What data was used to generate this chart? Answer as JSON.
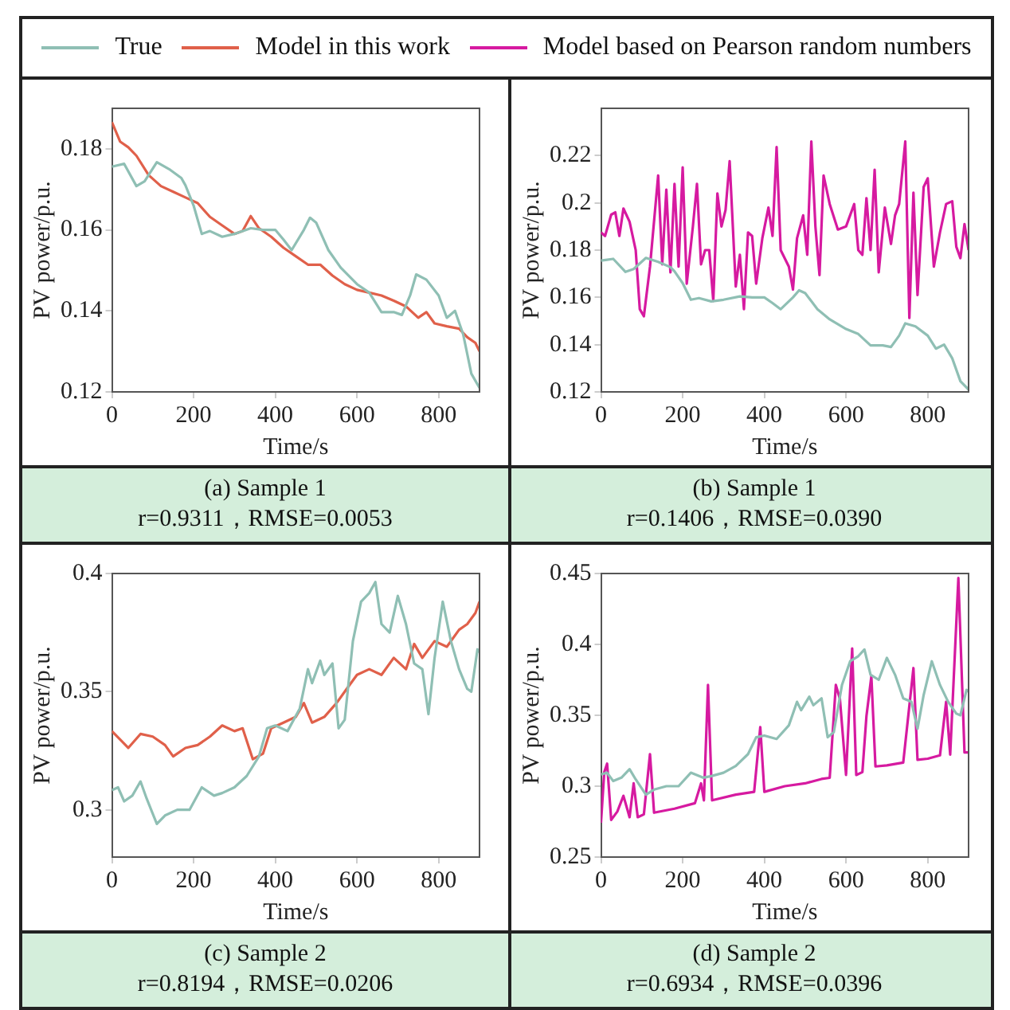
{
  "chart_data": [
    {
      "type": "line",
      "title": "(a) Sample 1",
      "subtitle": "r=0.9311，RMSE=0.0053",
      "xlabel": "Time/s",
      "ylabel": "PV power/p.u.",
      "xlim": [
        0,
        900
      ],
      "xticks": [
        0,
        200,
        400,
        600,
        800
      ],
      "ylim": [
        0.12,
        0.19
      ],
      "yticks": [
        0.12,
        0.14,
        0.16,
        0.18
      ],
      "legend": "top",
      "marker": "none",
      "line_style": "solid",
      "series": [
        {
          "name": "True",
          "color": "#8fbfb4",
          "x": [
            0,
            30,
            60,
            80,
            110,
            140,
            170,
            180,
            200,
            220,
            240,
            270,
            300,
            340,
            370,
            400,
            420,
            440,
            470,
            485,
            500,
            530,
            560,
            600,
            630,
            660,
            690,
            710,
            730,
            745,
            770,
            800,
            820,
            840,
            860,
            880,
            900
          ],
          "values": [
            0.1756,
            0.1763,
            0.1708,
            0.172,
            0.1767,
            0.175,
            0.1728,
            0.171,
            0.166,
            0.159,
            0.1597,
            0.1583,
            0.159,
            0.1604,
            0.16,
            0.16,
            0.1576,
            0.155,
            0.16,
            0.163,
            0.1618,
            0.155,
            0.1507,
            0.1466,
            0.1445,
            0.1397,
            0.1397,
            0.139,
            0.1438,
            0.149,
            0.1477,
            0.1438,
            0.1383,
            0.14,
            0.1342,
            0.1245,
            0.121
          ]
        },
        {
          "name": "Model in this work",
          "color": "#e0604a",
          "x": [
            0,
            20,
            40,
            60,
            90,
            120,
            150,
            180,
            210,
            240,
            270,
            300,
            320,
            340,
            360,
            390,
            420,
            450,
            480,
            510,
            540,
            570,
            600,
            630,
            660,
            690,
            720,
            750,
            770,
            790,
            820,
            850,
            870,
            890,
            900
          ],
          "values": [
            0.1866,
            0.1818,
            0.1804,
            0.1783,
            0.1735,
            0.1708,
            0.1694,
            0.168,
            0.1666,
            0.1632,
            0.1611,
            0.159,
            0.1597,
            0.1634,
            0.1604,
            0.1583,
            0.1556,
            0.1535,
            0.1514,
            0.1514,
            0.1487,
            0.1466,
            0.1452,
            0.1445,
            0.1438,
            0.1425,
            0.1411,
            0.1383,
            0.1397,
            0.1369,
            0.1362,
            0.1356,
            0.1335,
            0.1321,
            0.13
          ]
        }
      ]
    },
    {
      "type": "line",
      "title": "(b) Sample 1",
      "subtitle": "r=0.1406，RMSE=0.0390",
      "xlabel": "Time/s",
      "ylabel": "PV power/p.u.",
      "xlim": [
        0,
        900
      ],
      "xticks": [
        0,
        200,
        400,
        600,
        800
      ],
      "ylim": [
        0.12,
        0.24
      ],
      "yticks": [
        0.12,
        0.14,
        0.16,
        0.18,
        0.2,
        0.22
      ],
      "legend": "top",
      "marker": "none",
      "line_style": "solid",
      "series": [
        {
          "name": "True",
          "color": "#8fbfb4",
          "x": [
            0,
            30,
            60,
            80,
            110,
            140,
            170,
            180,
            200,
            220,
            240,
            270,
            300,
            340,
            370,
            400,
            420,
            440,
            470,
            485,
            500,
            530,
            560,
            600,
            630,
            660,
            690,
            710,
            730,
            745,
            770,
            800,
            820,
            840,
            860,
            880,
            900
          ],
          "values": [
            0.1756,
            0.1763,
            0.1708,
            0.172,
            0.1767,
            0.175,
            0.1728,
            0.171,
            0.166,
            0.159,
            0.1597,
            0.1583,
            0.159,
            0.1604,
            0.16,
            0.16,
            0.1576,
            0.155,
            0.16,
            0.163,
            0.1618,
            0.155,
            0.1507,
            0.1466,
            0.1445,
            0.1397,
            0.1397,
            0.139,
            0.1438,
            0.149,
            0.1477,
            0.1438,
            0.1383,
            0.14,
            0.1342,
            0.1245,
            0.121
          ]
        },
        {
          "name": "Model based on Pearson random numbers",
          "color": "#d61aa0",
          "x": [
            0,
            10,
            25,
            35,
            45,
            55,
            70,
            85,
            95,
            105,
            120,
            140,
            150,
            160,
            170,
            180,
            190,
            200,
            210,
            225,
            235,
            245,
            255,
            265,
            275,
            285,
            295,
            305,
            315,
            330,
            340,
            350,
            360,
            370,
            380,
            395,
            410,
            420,
            430,
            440,
            460,
            470,
            480,
            495,
            505,
            515,
            525,
            535,
            545,
            560,
            580,
            600,
            620,
            630,
            640,
            650,
            660,
            670,
            680,
            695,
            710,
            720,
            730,
            745,
            755,
            765,
            775,
            790,
            800,
            815,
            830,
            845,
            860,
            870,
            880,
            890,
            900
          ],
          "values": [
            0.1875,
            0.186,
            0.195,
            0.196,
            0.186,
            0.1976,
            0.192,
            0.18,
            0.155,
            0.152,
            0.173,
            0.2116,
            0.174,
            0.2056,
            0.1706,
            0.208,
            0.173,
            0.215,
            0.1658,
            0.19,
            0.208,
            0.174,
            0.18,
            0.18,
            0.1585,
            0.204,
            0.19,
            0.197,
            0.2176,
            0.1646,
            0.178,
            0.155,
            0.1875,
            0.186,
            0.1658,
            0.185,
            0.198,
            0.186,
            0.2236,
            0.18,
            0.173,
            0.1633,
            0.185,
            0.1947,
            0.178,
            0.226,
            0.19,
            0.1694,
            0.2116,
            0.1995,
            0.1887,
            0.19,
            0.1995,
            0.18,
            0.178,
            0.202,
            0.18,
            0.214,
            0.1706,
            0.198,
            0.1826,
            0.1947,
            0.1995,
            0.226,
            0.1513,
            0.2043,
            0.161,
            0.2067,
            0.2104,
            0.173,
            0.1875,
            0.1995,
            0.2007,
            0.1814,
            0.1766,
            0.191,
            0.18
          ]
        }
      ]
    },
    {
      "type": "line",
      "title": "(c) Sample 2",
      "subtitle": "r=0.8194，RMSE=0.0206",
      "xlabel": "Time/s",
      "ylabel": "PV power/p.u.",
      "xlim": [
        0,
        900
      ],
      "xticks": [
        0,
        200,
        400,
        600,
        800
      ],
      "ylim": [
        0.28,
        0.4
      ],
      "yticks": [
        0.3,
        0.35,
        0.4
      ],
      "legend": "top",
      "marker": "none",
      "line_style": "solid",
      "series": [
        {
          "name": "True",
          "color": "#8fbfb4",
          "x": [
            0,
            15,
            30,
            50,
            70,
            85,
            110,
            130,
            160,
            190,
            220,
            250,
            270,
            300,
            330,
            360,
            380,
            400,
            430,
            460,
            480,
            490,
            510,
            520,
            540,
            555,
            570,
            590,
            610,
            630,
            645,
            660,
            680,
            700,
            720,
            740,
            760,
            775,
            790,
            810,
            830,
            850,
            870,
            880,
            895,
            900
          ],
          "values": [
            0.3083,
            0.3095,
            0.3036,
            0.306,
            0.312,
            0.3048,
            0.294,
            0.2976,
            0.3,
            0.3,
            0.3095,
            0.306,
            0.3071,
            0.3095,
            0.3143,
            0.3226,
            0.3345,
            0.3357,
            0.3333,
            0.3429,
            0.3595,
            0.3536,
            0.3631,
            0.3571,
            0.3619,
            0.3345,
            0.3381,
            0.3714,
            0.3881,
            0.3917,
            0.3964,
            0.3786,
            0.375,
            0.3905,
            0.3786,
            0.3619,
            0.3595,
            0.3405,
            0.3643,
            0.3881,
            0.3714,
            0.3595,
            0.3512,
            0.35,
            0.3679,
            0.3667
          ]
        },
        {
          "name": "Model in this work",
          "color": "#e0604a",
          "x": [
            0,
            20,
            40,
            70,
            100,
            130,
            150,
            180,
            210,
            240,
            270,
            300,
            320,
            345,
            370,
            390,
            420,
            450,
            470,
            490,
            520,
            550,
            575,
            600,
            630,
            660,
            690,
            720,
            740,
            760,
            790,
            820,
            850,
            870,
            890,
            900
          ],
          "values": [
            0.3333,
            0.3298,
            0.3262,
            0.3321,
            0.331,
            0.3274,
            0.3226,
            0.3262,
            0.3274,
            0.331,
            0.3357,
            0.3333,
            0.3345,
            0.3214,
            0.3238,
            0.3345,
            0.3369,
            0.3393,
            0.3452,
            0.3369,
            0.3393,
            0.3452,
            0.3512,
            0.3571,
            0.3595,
            0.3571,
            0.3643,
            0.3595,
            0.3702,
            0.3643,
            0.3714,
            0.369,
            0.3762,
            0.3786,
            0.3833,
            0.3881
          ]
        }
      ]
    },
    {
      "type": "line",
      "title": "(d) Sample 2",
      "subtitle": "r=0.6934，RMSE=0.0396",
      "xlabel": "Time/s",
      "ylabel": "PV power/p.u.",
      "xlim": [
        0,
        900
      ],
      "xticks": [
        0,
        200,
        400,
        600,
        800
      ],
      "ylim": [
        0.25,
        0.45
      ],
      "yticks": [
        0.25,
        0.3,
        0.35,
        0.4,
        0.45
      ],
      "legend": "top",
      "marker": "none",
      "line_style": "solid",
      "series": [
        {
          "name": "True",
          "color": "#8fbfb4",
          "x": [
            0,
            15,
            30,
            50,
            70,
            85,
            110,
            130,
            160,
            190,
            220,
            250,
            270,
            300,
            330,
            360,
            380,
            400,
            430,
            460,
            480,
            490,
            510,
            520,
            540,
            555,
            570,
            590,
            610,
            630,
            645,
            660,
            680,
            700,
            720,
            740,
            760,
            775,
            790,
            810,
            830,
            850,
            870,
            880,
            895,
            900
          ],
          "values": [
            0.3083,
            0.3095,
            0.3036,
            0.306,
            0.312,
            0.3048,
            0.294,
            0.2976,
            0.3,
            0.3,
            0.3095,
            0.306,
            0.3071,
            0.3095,
            0.3143,
            0.3226,
            0.3345,
            0.3357,
            0.3333,
            0.3429,
            0.3595,
            0.3536,
            0.3631,
            0.3571,
            0.3619,
            0.3345,
            0.3381,
            0.3714,
            0.3881,
            0.3917,
            0.3964,
            0.3786,
            0.375,
            0.3905,
            0.3786,
            0.3619,
            0.3595,
            0.3405,
            0.3643,
            0.3881,
            0.3714,
            0.3595,
            0.3512,
            0.35,
            0.3679,
            0.3667
          ]
        },
        {
          "name": "Model based on Pearson random numbers",
          "color": "#d61aa0",
          "x": [
            0,
            8,
            15,
            25,
            40,
            55,
            70,
            80,
            90,
            105,
            120,
            130,
            180,
            230,
            245,
            252,
            262,
            272,
            330,
            375,
            390,
            400,
            450,
            500,
            540,
            560,
            575,
            585,
            600,
            615,
            625,
            640,
            650,
            662,
            672,
            700,
            740,
            765,
            775,
            800,
            830,
            845,
            855,
            875,
            890,
            900
          ],
          "values": [
            0.2742,
            0.3099,
            0.3159,
            0.2762,
            0.2821,
            0.2932,
            0.2781,
            0.302,
            0.2781,
            0.2801,
            0.3226,
            0.2813,
            0.2841,
            0.288,
            0.302,
            0.29,
            0.3714,
            0.29,
            0.294,
            0.296,
            0.3416,
            0.296,
            0.3,
            0.302,
            0.3051,
            0.3059,
            0.3714,
            0.3615,
            0.3079,
            0.3972,
            0.3079,
            0.3099,
            0.3496,
            0.3774,
            0.3139,
            0.3147,
            0.3166,
            0.3833,
            0.3186,
            0.3194,
            0.3218,
            0.3595,
            0.3222,
            0.4468,
            0.3238,
            0.3238
          ]
        }
      ]
    }
  ]
}
